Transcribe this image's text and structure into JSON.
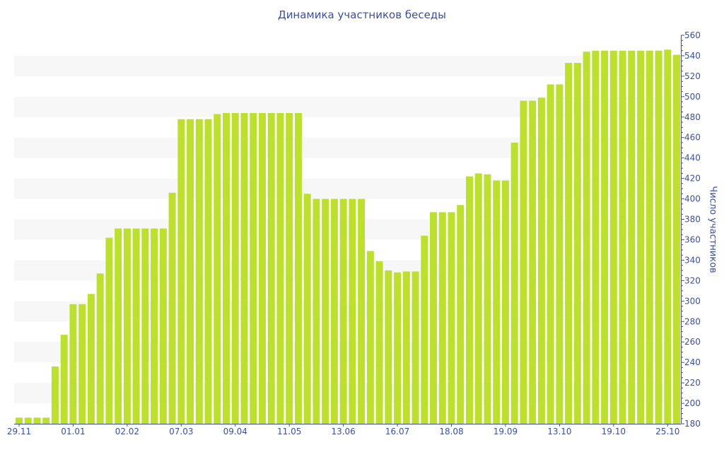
{
  "chart_data": {
    "type": "bar",
    "title": "Динамика участников беседы",
    "xlabel": "",
    "ylabel": "Число участников",
    "ylim": [
      180,
      560
    ],
    "yticks": [
      180,
      200,
      220,
      240,
      260,
      280,
      300,
      320,
      340,
      360,
      380,
      400,
      420,
      440,
      460,
      480,
      500,
      520,
      540,
      560
    ],
    "y_axis_side": "right",
    "bar_color": "#bde02f",
    "axis_color": "#3b4fa0",
    "band_color": "#f7f7f7",
    "categories": [
      "29.11",
      "",
      "",
      "",
      "",
      "",
      "01.01",
      "",
      "",
      "",
      "",
      "",
      "02.02",
      "",
      "",
      "",
      "",
      "",
      "07.03",
      "",
      "",
      "",
      "",
      "",
      "09.04",
      "",
      "",
      "",
      "",
      "",
      "11.05",
      "",
      "",
      "",
      "",
      "",
      "13.06",
      "",
      "",
      "",
      "",
      "",
      "16.07",
      "",
      "",
      "",
      "",
      "",
      "18.08",
      "",
      "",
      "",
      "",
      "",
      "19.09",
      "",
      "",
      "",
      "",
      "",
      "13.10",
      "",
      "",
      "",
      "",
      "",
      "19.10",
      "",
      "",
      "",
      "",
      "",
      "25.10",
      ""
    ],
    "values": [
      186,
      186,
      186,
      186,
      236,
      267,
      297,
      297,
      307,
      327,
      362,
      371,
      371,
      371,
      371,
      371,
      371,
      406,
      478,
      478,
      478,
      478,
      483,
      484,
      484,
      484,
      484,
      484,
      484,
      484,
      484,
      484,
      405,
      400,
      400,
      400,
      400,
      400,
      400,
      349,
      339,
      330,
      328,
      329,
      329,
      364,
      387,
      387,
      387,
      394,
      422,
      425,
      424,
      418,
      418,
      455,
      496,
      496,
      499,
      512,
      512,
      533,
      533,
      544,
      545,
      545,
      545,
      545,
      545,
      545,
      545,
      545,
      546,
      541
    ]
  }
}
